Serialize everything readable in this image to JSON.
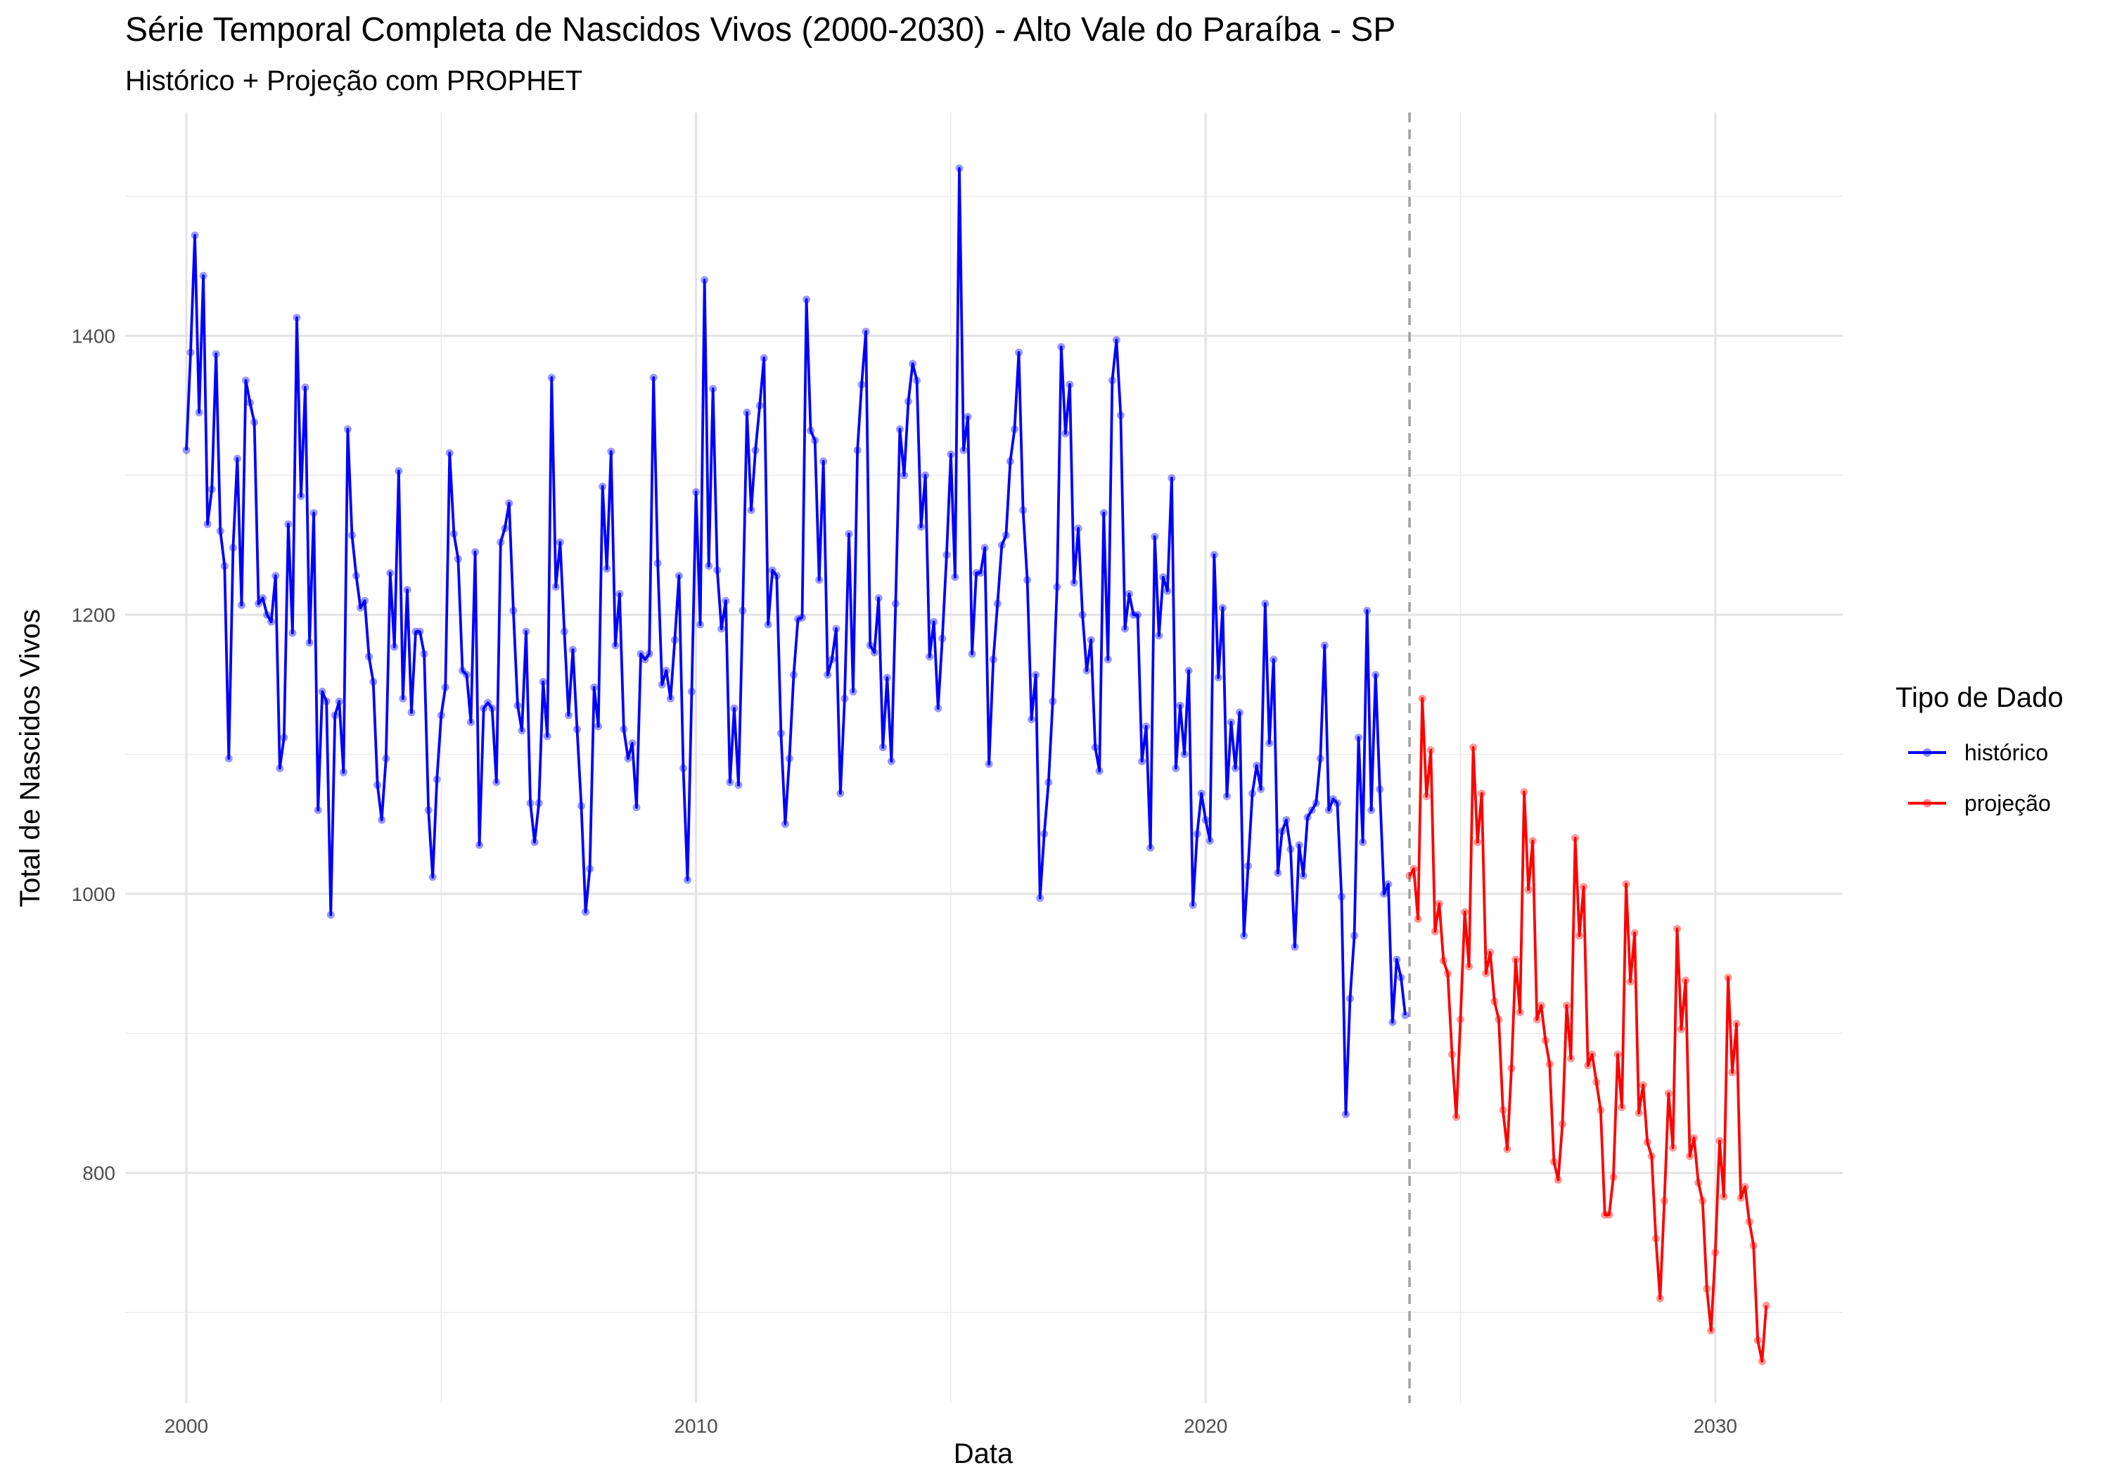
{
  "chart_data": {
    "type": "line",
    "title": "Série Temporal Completa de Nascidos Vivos (2000-2030) -  Alto Vale do Paraíba - SP",
    "subtitle": "Histórico + Projeção com PROPHET",
    "xlabel": "Data",
    "ylabel": "Total de Nascidos Vivos",
    "xlim": [
      1998.8,
      2032.5
    ],
    "ylim": [
      635,
      1560
    ],
    "x_ticks": [
      2000,
      2010,
      2020,
      2030
    ],
    "x_tick_labels": [
      "2000",
      "2010",
      "2020",
      "2030"
    ],
    "y_ticks": [
      800,
      1000,
      1200,
      1400
    ],
    "y_tick_labels": [
      "800",
      "1000",
      "1200",
      "1400"
    ],
    "grid": true,
    "vline_x": 2024.0,
    "legend": {
      "title": "Tipo de Dado",
      "position": "right"
    },
    "series": [
      {
        "name": "histórico",
        "color": "#0000ff",
        "start_year": 2000,
        "values": [
          1318,
          1388,
          1472,
          1345,
          1443,
          1265,
          1290,
          1387,
          1260,
          1235,
          1097,
          1248,
          1312,
          1207,
          1368,
          1352,
          1338,
          1208,
          1212,
          1200,
          1195,
          1228,
          1090,
          1112,
          1265,
          1187,
          1413,
          1285,
          1363,
          1180,
          1273,
          1060,
          1145,
          1138,
          985,
          1128,
          1138,
          1087,
          1333,
          1257,
          1228,
          1205,
          1210,
          1170,
          1152,
          1078,
          1053,
          1097,
          1230,
          1177,
          1303,
          1140,
          1218,
          1130,
          1188,
          1188,
          1172,
          1060,
          1012,
          1082,
          1128,
          1148,
          1316,
          1258,
          1240,
          1160,
          1157,
          1123,
          1245,
          1035,
          1133,
          1137,
          1133,
          1080,
          1252,
          1262,
          1280,
          1203,
          1135,
          1117,
          1188,
          1065,
          1037,
          1065,
          1152,
          1113,
          1370,
          1220,
          1252,
          1188,
          1128,
          1175,
          1118,
          1063,
          987,
          1018,
          1148,
          1120,
          1292,
          1233,
          1317,
          1178,
          1215,
          1118,
          1097,
          1108,
          1062,
          1172,
          1168,
          1172,
          1370,
          1237,
          1150,
          1160,
          1140,
          1182,
          1228,
          1090,
          1010,
          1145,
          1288,
          1193,
          1440,
          1235,
          1362,
          1232,
          1190,
          1210,
          1080,
          1133,
          1078,
          1203,
          1345,
          1275,
          1318,
          1350,
          1384,
          1193,
          1232,
          1228,
          1115,
          1050,
          1097,
          1157,
          1197,
          1198,
          1426,
          1332,
          1325,
          1225,
          1310,
          1157,
          1168,
          1190,
          1072,
          1140,
          1258,
          1145,
          1318,
          1365,
          1403,
          1178,
          1173,
          1212,
          1105,
          1155,
          1095,
          1208,
          1333,
          1300,
          1353,
          1380,
          1368,
          1263,
          1300,
          1170,
          1195,
          1133,
          1183,
          1243,
          1315,
          1227,
          1520,
          1318,
          1342,
          1172,
          1230,
          1230,
          1248,
          1093,
          1168,
          1208,
          1250,
          1257,
          1310,
          1333,
          1388,
          1275,
          1225,
          1125,
          1157,
          997,
          1043,
          1080,
          1138,
          1220,
          1392,
          1330,
          1365,
          1223,
          1262,
          1200,
          1160,
          1182,
          1105,
          1088,
          1273,
          1168,
          1368,
          1397,
          1343,
          1190,
          1215,
          1200,
          1200,
          1095,
          1120,
          1033,
          1256,
          1185,
          1227,
          1217,
          1298,
          1090,
          1135,
          1100,
          1160,
          992,
          1043,
          1072,
          1053,
          1038,
          1243,
          1155,
          1205,
          1070,
          1123,
          1090,
          1130,
          970,
          1020,
          1072,
          1092,
          1075,
          1208,
          1108,
          1168,
          1015,
          1045,
          1053,
          1032,
          962,
          1035,
          1013,
          1055,
          1060,
          1065,
          1097,
          1178,
          1060,
          1068,
          1065,
          998,
          842,
          925,
          970,
          1112,
          1037,
          1203,
          1060,
          1157,
          1075,
          1000,
          1007,
          908,
          953,
          940,
          913
        ]
      },
      {
        "name": "projeção",
        "color": "#ff0000",
        "start_year": 2024,
        "values": [
          1013,
          1018,
          982,
          1140,
          1070,
          1103,
          973,
          993,
          952,
          943,
          885,
          840,
          910,
          987,
          948,
          1105,
          1037,
          1072,
          943,
          958,
          923,
          910,
          845,
          817,
          875,
          953,
          915,
          1073,
          1003,
          1038,
          910,
          920,
          895,
          878,
          808,
          795,
          835,
          920,
          882,
          1040,
          970,
          1005,
          877,
          885,
          865,
          845,
          770,
          770,
          797,
          885,
          847,
          1007,
          937,
          972,
          843,
          863,
          822,
          812,
          753,
          710,
          780,
          857,
          818,
          975,
          903,
          938,
          812,
          825,
          793,
          780,
          717,
          687,
          743,
          823,
          783,
          940,
          872,
          907,
          782,
          790,
          765,
          748,
          680,
          665,
          705
        ]
      }
    ]
  }
}
